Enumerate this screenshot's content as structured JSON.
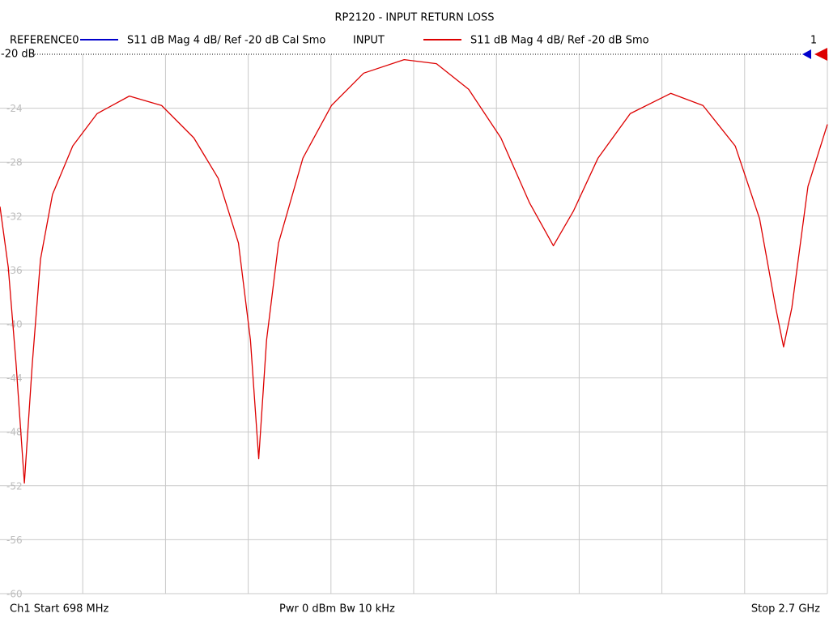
{
  "chart_data": {
    "type": "line",
    "title": "RP2120 - INPUT RETURN LOSS",
    "series": [
      {
        "name": "REFERENCE0",
        "color": "#0000cc",
        "trace_label": "S11  dB Mag  4 dB/ Ref -20 dB  Cal Smo"
      },
      {
        "name": "INPUT",
        "color": "#dd0000",
        "trace_label": "S11  dB Mag  4 dB/ Ref -20 dB  Smo",
        "values": [
          -31.3,
          -35.8,
          -43,
          -51.8,
          -43,
          -35.2,
          -30.4,
          -26.8,
          -24.4,
          -23.1,
          -23.8,
          -26.2,
          -29.2,
          -34,
          -41.2,
          -50,
          -41.2,
          -34,
          -27.7,
          -23.8,
          -21.4,
          -20.4,
          -20.7,
          -22.6,
          -26.2,
          -31,
          -34.2,
          -31.6,
          -27.7,
          -24.4,
          -22.9,
          -23.8,
          -26.8,
          -32.2,
          -38.8,
          -41.7,
          -38.8,
          -29.8,
          -25.2
        ]
      }
    ],
    "x": [
      698,
      718,
      737,
      757,
      776,
      796,
      825,
      874,
      933,
      1011,
      1089,
      1167,
      1226,
      1275,
      1304,
      1324,
      1343,
      1372,
      1431,
      1500,
      1578,
      1676,
      1754,
      1832,
      1910,
      1979,
      2037,
      2086,
      2145,
      2223,
      2321,
      2399,
      2477,
      2536,
      2575,
      2594,
      2614,
      2653,
      2700
    ],
    "xlim": [
      698,
      2700
    ],
    "x_divisions": 10,
    "ylim": [
      -60,
      -20
    ],
    "yticks": [
      -24,
      -28,
      -32,
      -36,
      -40,
      -44,
      -48,
      -52,
      -56,
      -60
    ],
    "reference": {
      "value": -20,
      "label": "-20 dB"
    },
    "marker_label": "1",
    "footer": {
      "start": "Ch1  Start  698 MHz",
      "power": "Pwr  0 dBm  Bw  10 kHz",
      "stop": "Stop  2.7 GHz"
    },
    "grid": true
  }
}
